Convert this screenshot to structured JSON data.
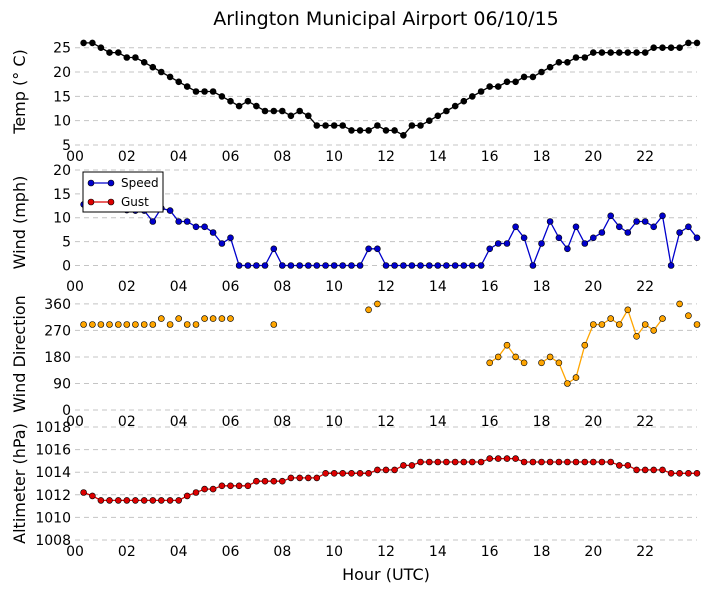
{
  "chart_data": {
    "type": "line",
    "title": "Arlington Municipal Airport 06/10/15",
    "xlabel": "Hour (UTC)",
    "xlim": [
      0,
      24
    ],
    "x_ticks": [
      0,
      2,
      4,
      6,
      8,
      10,
      12,
      14,
      16,
      18,
      20,
      22
    ],
    "x_tick_labels": [
      "00",
      "02",
      "04",
      "06",
      "08",
      "10",
      "12",
      "14",
      "16",
      "18",
      "20",
      "22"
    ],
    "x": [
      0.33,
      0.67,
      1.0,
      1.33,
      1.67,
      2.0,
      2.33,
      2.67,
      3.0,
      3.33,
      3.67,
      4.0,
      4.33,
      4.67,
      5.0,
      5.33,
      5.67,
      6.0,
      6.33,
      6.67,
      7.0,
      7.33,
      7.67,
      8.0,
      8.33,
      8.67,
      9.0,
      9.33,
      9.67,
      10.0,
      10.33,
      10.67,
      11.0,
      11.33,
      11.67,
      12.0,
      12.33,
      12.67,
      13.0,
      13.33,
      13.67,
      14.0,
      14.33,
      14.67,
      15.0,
      15.33,
      15.67,
      16.0,
      16.33,
      16.67,
      17.0,
      17.33,
      17.67,
      18.0,
      18.33,
      18.67,
      19.0,
      19.33,
      19.67,
      20.0,
      20.33,
      20.67,
      21.0,
      21.33,
      21.67,
      22.0,
      22.33,
      22.67,
      23.0,
      23.33,
      23.67,
      24.0
    ],
    "panels": [
      {
        "ylabel": "Temp (° C)",
        "ylim": [
          5,
          27
        ],
        "y_ticks": [
          5,
          10,
          15,
          20,
          25
        ],
        "series": [
          {
            "name": "Temp",
            "color": "#000000",
            "line": true,
            "values": [
              26,
              26,
              25,
              24,
              24,
              23,
              23,
              22,
              21,
              20,
              19,
              18,
              17,
              16,
              16,
              16,
              15,
              14,
              13,
              14,
              13,
              12,
              12,
              12,
              11,
              12,
              11,
              9,
              9,
              9,
              9,
              8,
              8,
              8,
              9,
              8,
              8,
              7,
              9,
              9,
              10,
              11,
              12,
              13,
              14,
              15,
              16,
              17,
              17,
              18,
              18,
              19,
              19,
              20,
              21,
              22,
              22,
              23,
              23,
              24,
              24,
              24,
              24,
              24,
              24,
              24,
              25,
              25,
              25,
              25,
              26,
              26
            ]
          }
        ]
      },
      {
        "ylabel": "Wind (mph)",
        "ylim": [
          -2,
          20
        ],
        "y_ticks": [
          0,
          5,
          10,
          15,
          20
        ],
        "legend": {
          "position": "top-left",
          "entries": [
            "Speed",
            "Gust"
          ]
        },
        "series": [
          {
            "name": "Speed",
            "color": "#0000cc",
            "line": true,
            "values": [
              12.8,
              12.5,
              12.2,
              12,
              11.8,
              11.6,
              11.5,
              11.5,
              9.2,
              12,
              11.5,
              9.2,
              9.2,
              8.1,
              8.1,
              6.9,
              4.6,
              5.8,
              0,
              0,
              0,
              0,
              3.5,
              0,
              0,
              0,
              0,
              0,
              0,
              0,
              0,
              0,
              0,
              3.5,
              3.5,
              0,
              0,
              0,
              0,
              0,
              0,
              0,
              0,
              0,
              0,
              0,
              0,
              3.5,
              4.6,
              4.6,
              8.1,
              5.8,
              0,
              4.6,
              9.2,
              5.8,
              3.5,
              8.1,
              4.6,
              5.8,
              6.9,
              10.4,
              8.1,
              6.9,
              9.2,
              9.2,
              8.1,
              10.4,
              0,
              6.9,
              8.1,
              5.8
            ]
          },
          {
            "name": "Gust",
            "color": "#dd0000",
            "line": true,
            "values": []
          }
        ]
      },
      {
        "ylabel": "Wind Direction",
        "ylim": [
          0,
          380
        ],
        "y_ticks": [
          0,
          90,
          180,
          270,
          360
        ],
        "series": [
          {
            "name": "Direction",
            "color": "#ffa500",
            "line": false,
            "values": [
              290,
              290,
              290,
              290,
              290,
              290,
              290,
              290,
              290,
              310,
              290,
              310,
              290,
              290,
              310,
              310,
              310,
              310,
              null,
              null,
              null,
              null,
              290,
              null,
              null,
              null,
              null,
              null,
              null,
              null,
              null,
              null,
              null,
              340,
              360,
              null,
              null,
              null,
              null,
              null,
              null,
              null,
              null,
              null,
              null,
              null,
              null,
              160,
              180,
              220,
              180,
              160,
              null,
              160,
              180,
              160,
              90,
              110,
              220,
              290,
              290,
              310,
              290,
              340,
              250,
              290,
              270,
              310,
              null,
              360,
              320,
              290
            ]
          }
        ]
      },
      {
        "ylabel": "Altimeter (hPa)",
        "ylim": [
          1008,
          1018
        ],
        "y_ticks": [
          1008,
          1010,
          1012,
          1014,
          1016,
          1018
        ],
        "series": [
          {
            "name": "Altimeter",
            "color": "#dd0000",
            "line": true,
            "values": [
              1012.2,
              1011.9,
              1011.5,
              1011.5,
              1011.5,
              1011.5,
              1011.5,
              1011.5,
              1011.5,
              1011.5,
              1011.5,
              1011.5,
              1011.9,
              1012.2,
              1012.5,
              1012.5,
              1012.8,
              1012.8,
              1012.8,
              1012.8,
              1013.2,
              1013.2,
              1013.2,
              1013.2,
              1013.5,
              1013.5,
              1013.5,
              1013.5,
              1013.9,
              1013.9,
              1013.9,
              1013.9,
              1013.9,
              1013.9,
              1014.2,
              1014.2,
              1014.2,
              1014.6,
              1014.6,
              1014.9,
              1014.9,
              1014.9,
              1014.9,
              1014.9,
              1014.9,
              1014.9,
              1014.9,
              1015.2,
              1015.2,
              1015.2,
              1015.2,
              1014.9,
              1014.9,
              1014.9,
              1014.9,
              1014.9,
              1014.9,
              1014.9,
              1014.9,
              1014.9,
              1014.9,
              1014.9,
              1014.6,
              1014.6,
              1014.2,
              1014.2,
              1014.2,
              1014.2,
              1013.9,
              1013.9,
              1013.9,
              1013.9
            ]
          }
        ]
      }
    ]
  }
}
